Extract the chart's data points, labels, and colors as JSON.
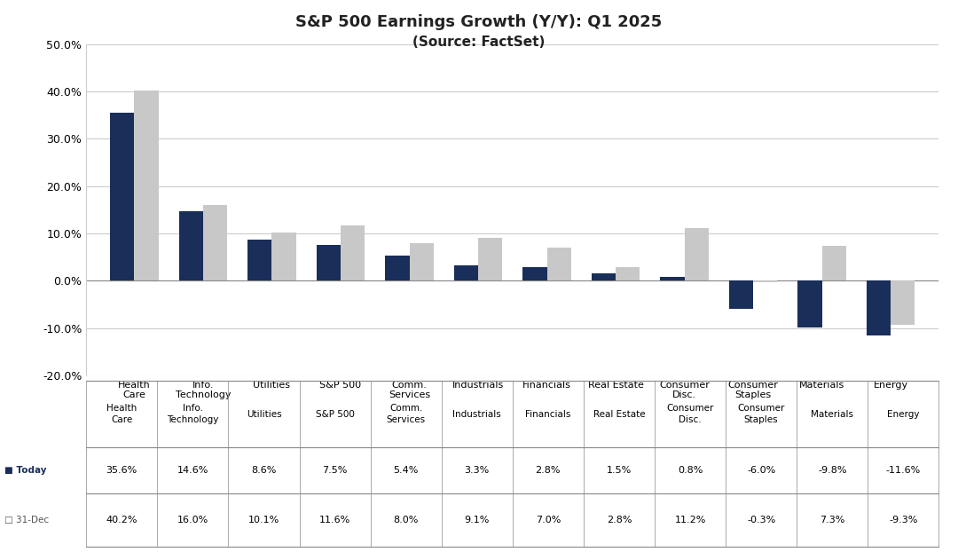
{
  "title_line1": "S&P 500 Earnings Growth (Y/Y): Q1 2025",
  "title_line2": "(Source: FactSet)",
  "categories": [
    "Health\nCare",
    "Info.\nTechnology",
    "Utilities",
    "S&P 500",
    "Comm.\nServices",
    "Industrials",
    "Financials",
    "Real Estate",
    "Consumer\nDisc.",
    "Consumer\nStaples",
    "Materials",
    "Energy"
  ],
  "today_values": [
    35.6,
    14.6,
    8.6,
    7.5,
    5.4,
    3.3,
    2.8,
    1.5,
    0.8,
    -6.0,
    -9.8,
    -11.6
  ],
  "dec_values": [
    40.2,
    16.0,
    10.1,
    11.6,
    8.0,
    9.1,
    7.0,
    2.8,
    11.2,
    -0.3,
    7.3,
    -9.3
  ],
  "today_label": "Today",
  "dec_label": "31-Dec",
  "today_color": "#1a2e5a",
  "dec_color": "#c8c8c8",
  "ylim_min": -20.0,
  "ylim_max": 50.0,
  "yticks": [
    -20.0,
    -10.0,
    0.0,
    10.0,
    20.0,
    30.0,
    40.0,
    50.0
  ],
  "background_color": "#ffffff",
  "grid_color": "#cccccc",
  "table_today": [
    "35.6%",
    "14.6%",
    "8.6%",
    "7.5%",
    "5.4%",
    "3.3%",
    "2.8%",
    "1.5%",
    "0.8%",
    "-6.0%",
    "-9.8%",
    "-11.6%"
  ],
  "table_dec": [
    "40.2%",
    "16.0%",
    "10.1%",
    "11.6%",
    "8.0%",
    "9.1%",
    "7.0%",
    "2.8%",
    "11.2%",
    "-0.3%",
    "7.3%",
    "-9.3%"
  ]
}
